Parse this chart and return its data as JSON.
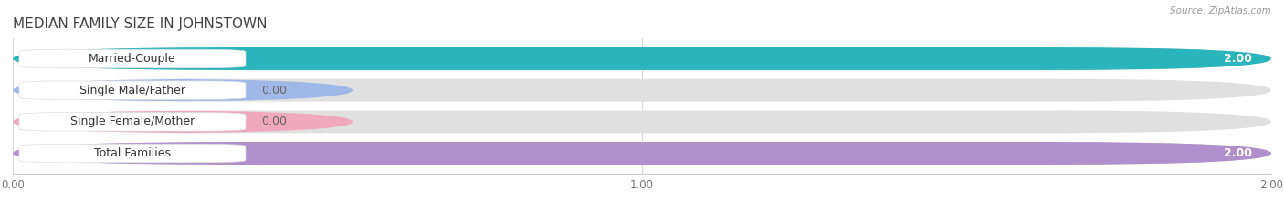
{
  "title": "MEDIAN FAMILY SIZE IN JOHNSTOWN",
  "source": "Source: ZipAtlas.com",
  "categories": [
    "Married-Couple",
    "Single Male/Father",
    "Single Female/Mother",
    "Total Families"
  ],
  "values": [
    2.0,
    0.0,
    0.0,
    2.0
  ],
  "bar_colors": [
    "#2ab5bc",
    "#a0b8e8",
    "#f0a8bc",
    "#b090cc"
  ],
  "bar_bg_color": "#e0e0e0",
  "xlim": [
    0,
    2.0
  ],
  "xticks": [
    0.0,
    1.0,
    2.0
  ],
  "xtick_labels": [
    "0.00",
    "1.00",
    "2.00"
  ],
  "label_value_color": "#777777",
  "title_color": "#444444",
  "source_color": "#999999",
  "background_color": "#ffffff",
  "bar_height": 0.72,
  "value_fontsize": 9,
  "label_fontsize": 9,
  "title_fontsize": 11
}
